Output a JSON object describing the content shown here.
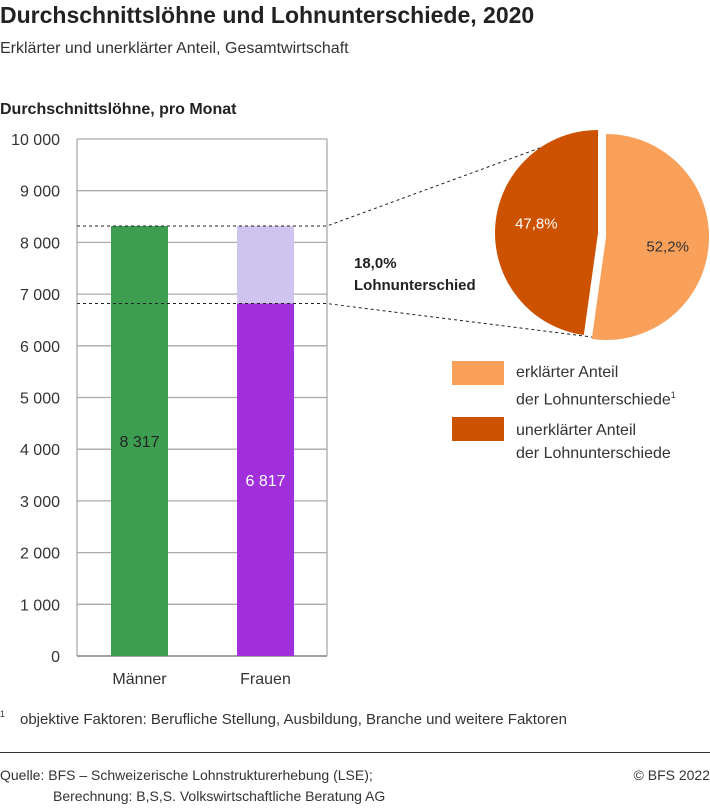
{
  "title": "Durchschnittslöhne und Lohnunterschiede, 2020",
  "subtitle": "Erklärter und unerklärter Anteil, Gesamtwirtschaft",
  "chart_data": [
    {
      "type": "bar",
      "ylabel": "Durchschnittslöhne, pro Monat",
      "ylim": [
        0,
        10000
      ],
      "yticks": [
        "0",
        "1 000",
        "2 000",
        "3 000",
        "4 000",
        "5 000",
        "6 000",
        "7 000",
        "8 000",
        "9 000",
        "10 000"
      ],
      "categories": [
        "Männer",
        "Frauen"
      ],
      "values": [
        8317,
        6817
      ],
      "labels": [
        "8 317",
        "6 817"
      ],
      "gap_value": 8317,
      "colors": {
        "Männer": "#3d9e52",
        "Frauen": "#a22fdc",
        "gap": "#cfc3f0"
      },
      "grid": true
    },
    {
      "type": "pie",
      "annotation": [
        "18,0%",
        "Lohnunterschied"
      ],
      "slices": [
        {
          "name": "erklärter Anteil der Lohnunterschiede",
          "value": 52.2,
          "label": "52,2%",
          "color": "#f9a05a"
        },
        {
          "name": "unerklärter Anteil der Lohnunterschiede",
          "value": 47.8,
          "label": "47,8%",
          "color": "#cc5200"
        }
      ],
      "legend": [
        [
          "erklärter Anteil",
          "der Lohnunterschiede",
          "1"
        ],
        [
          "unerklärter Anteil",
          "der Lohnunterschiede",
          ""
        ]
      ],
      "legend_position": "bottom-right"
    }
  ],
  "footnote": {
    "mark": "1",
    "text": "objektive Faktoren: Berufliche Stellung, Ausbildung, Branche und weitere Faktoren"
  },
  "source": {
    "line1": "Quelle: BFS – Schweizerische Lohnstrukturerhebung (LSE);",
    "line2": "Berechnung:  B,S,S. Volkswirtschaftliche Beratung AG",
    "copyright": "© BFS 2022"
  }
}
